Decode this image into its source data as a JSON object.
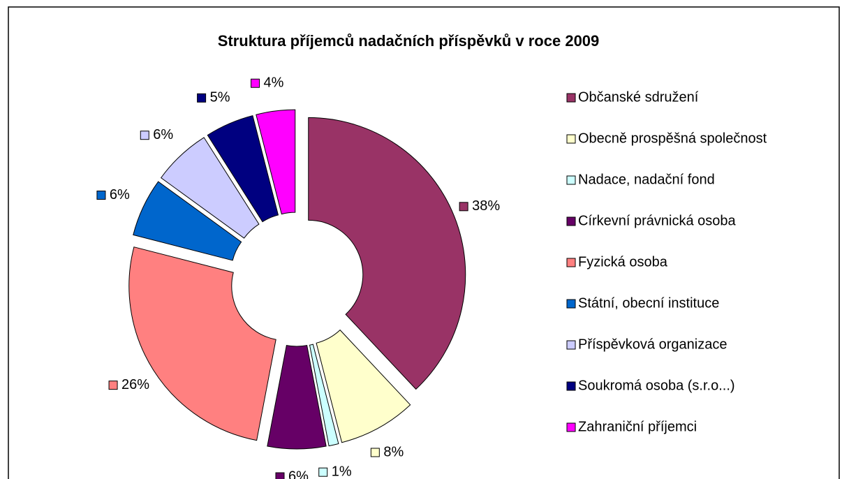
{
  "chart_data": {
    "type": "pie",
    "donut": true,
    "title": "Struktura příjemců nadačních příspěvků v roce 2009",
    "categories": [
      "Občanské sdružení",
      "Obecně prospěšná společnost",
      "Nadace, nadační fond",
      "Církevní právnická osoba",
      "Fyzická osoba",
      "Státní, obecní instituce",
      "Příspěvková organizace",
      "Soukromá osoba (s.r.o...)",
      "Zahraniční příjemci"
    ],
    "values": [
      38,
      8,
      1,
      6,
      26,
      6,
      6,
      5,
      4
    ],
    "value_labels": [
      "38%",
      "8%",
      "1%",
      "6%",
      "26%",
      "6%",
      "6%",
      "5%",
      "4%"
    ],
    "colors": [
      "#993366",
      "#FFFFCC",
      "#CCFFFF",
      "#660066",
      "#FF8080",
      "#0066CC",
      "#CCCCFF",
      "#000080",
      "#FF00FF"
    ],
    "legend": "right"
  }
}
